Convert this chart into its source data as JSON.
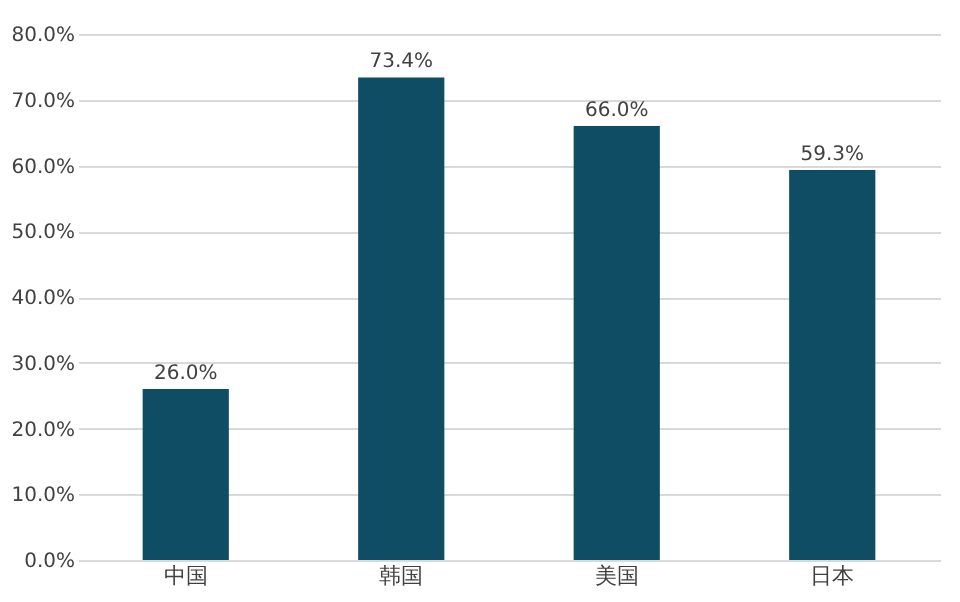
{
  "chart_data": {
    "type": "bar",
    "categories": [
      "中国",
      "韩国",
      "美国",
      "日本"
    ],
    "values": [
      26.0,
      73.4,
      66.0,
      59.3
    ],
    "value_labels": [
      "26.0%",
      "73.4%",
      "66.0%",
      "59.3%"
    ],
    "color": "#0e4d64",
    "ylim": [
      0,
      80
    ],
    "yticks": [
      {
        "value": 0,
        "label": "0.0%"
      },
      {
        "value": 10,
        "label": "10.0%"
      },
      {
        "value": 20,
        "label": "20.0%"
      },
      {
        "value": 30,
        "label": "30.0%"
      },
      {
        "value": 40,
        "label": "40.0%"
      },
      {
        "value": 50,
        "label": "50.0%"
      },
      {
        "value": 60,
        "label": "60.0%"
      },
      {
        "value": 70,
        "label": "70.0%"
      },
      {
        "value": 80,
        "label": "80.0%"
      }
    ],
    "grid": "y"
  }
}
